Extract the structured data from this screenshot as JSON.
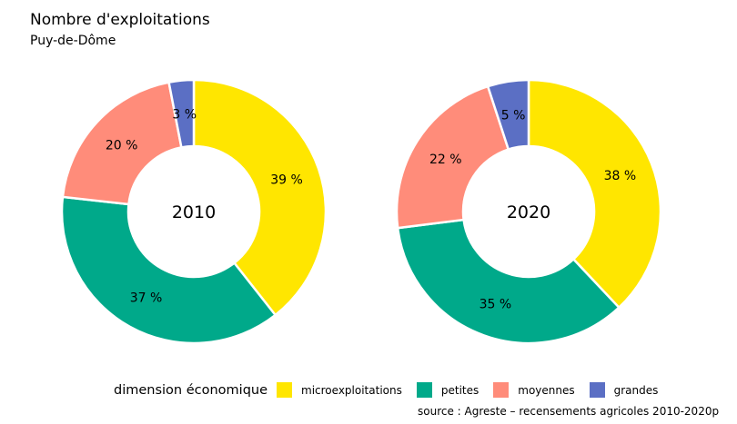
{
  "title": "Nombre d'exploitations",
  "subtitle": "Puy-de-Dôme",
  "source": "source : Agreste – recensements agricoles 2010-2020p",
  "legend": {
    "title": "dimension économique",
    "items": [
      {
        "label": "microexploitations",
        "color": "#FFE600"
      },
      {
        "label": "petites",
        "color": "#00A98A"
      },
      {
        "label": "moyennes",
        "color": "#FF8C7A"
      },
      {
        "label": "grandes",
        "color": "#5B6FC4"
      }
    ]
  },
  "chart_data": [
    {
      "type": "pie",
      "center_label": "2010",
      "categories": [
        "microexploitations",
        "petites",
        "moyennes",
        "grandes"
      ],
      "values": [
        39,
        37,
        20,
        3
      ],
      "labels": [
        "39 %",
        "37 %",
        "20 %",
        "3 %"
      ]
    },
    {
      "type": "pie",
      "center_label": "2020",
      "categories": [
        "microexploitations",
        "petites",
        "moyennes",
        "grandes"
      ],
      "values": [
        38,
        35,
        22,
        5
      ],
      "labels": [
        "38 %",
        "35 %",
        "22 %",
        "5 %"
      ]
    }
  ]
}
